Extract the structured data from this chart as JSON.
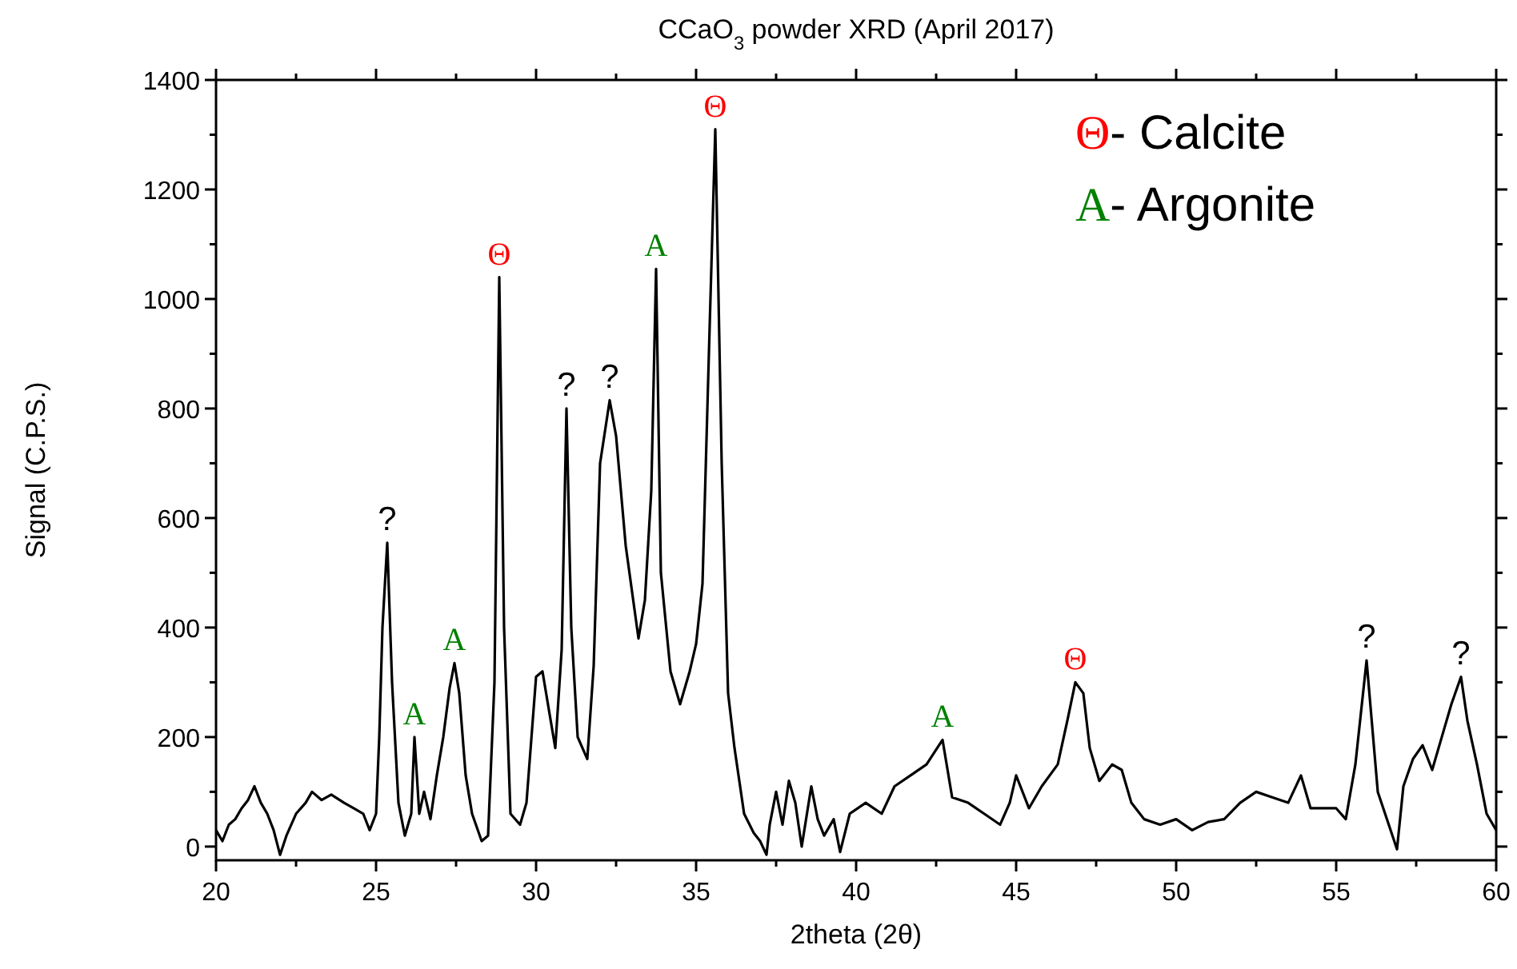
{
  "chart_data": {
    "type": "line",
    "title": "CCaO$_{3}$ powder XRD (April 2017)",
    "xlabel": "2theta (2θ)",
    "ylabel": "Signal (C.P.S.)",
    "xlim": [
      20,
      60
    ],
    "ylim": [
      -25,
      1400
    ],
    "xticks": [
      20,
      {
        "value": 22.5,
        "label": null
      },
      25,
      {
        "value": 27.5,
        "label": null
      },
      30,
      {
        "value": 32.5,
        "label": null
      },
      35,
      {
        "value": 37.5,
        "label": null
      },
      40,
      {
        "value": 42.5,
        "label": null
      },
      45,
      {
        "value": 47.5,
        "label": null
      },
      50,
      {
        "value": 52.5,
        "label": null
      },
      55,
      {
        "value": 57.5,
        "label": null
      },
      60
    ],
    "yticks": [
      0,
      {
        "value": 100,
        "label": null
      },
      200,
      {
        "value": 300,
        "label": null
      },
      400,
      {
        "value": 500,
        "label": null
      },
      600,
      {
        "value": 700,
        "label": null
      },
      800,
      {
        "value": 900,
        "label": null
      },
      1000,
      {
        "value": 1100,
        "label": null
      },
      1200,
      {
        "value": 1300,
        "label": null
      },
      1400
    ],
    "grid": false,
    "marker": "none",
    "line_style": "solid",
    "series": [
      {
        "color": "#000000",
        "x": [
          20.0,
          20.2,
          20.4,
          20.6,
          20.8,
          21.0,
          21.2,
          21.4,
          21.6,
          21.8,
          22.0,
          22.2,
          22.5,
          22.8,
          23.0,
          23.3,
          23.6,
          24.0,
          24.3,
          24.6,
          24.8,
          25.0,
          25.1,
          25.2,
          25.35,
          25.5,
          25.7,
          25.9,
          26.1,
          26.2,
          26.35,
          26.5,
          26.7,
          26.9,
          27.1,
          27.3,
          27.45,
          27.6,
          27.8,
          28.0,
          28.3,
          28.5,
          28.7,
          28.85,
          29.0,
          29.2,
          29.5,
          29.7,
          30.0,
          30.2,
          30.4,
          30.6,
          30.8,
          30.95,
          31.1,
          31.3,
          31.6,
          31.8,
          32.0,
          32.3,
          32.5,
          32.8,
          33.2,
          33.4,
          33.6,
          33.75,
          33.9,
          34.2,
          34.5,
          34.8,
          35.0,
          35.2,
          35.4,
          35.6,
          35.8,
          36.0,
          36.2,
          36.5,
          36.8,
          37.0,
          37.2,
          37.3,
          37.5,
          37.7,
          37.9,
          38.1,
          38.3,
          38.6,
          38.8,
          39.0,
          39.3,
          39.5,
          39.8,
          40.3,
          40.8,
          41.2,
          41.7,
          42.2,
          42.7,
          43.0,
          43.5,
          44.0,
          44.5,
          44.8,
          45.0,
          45.4,
          45.8,
          46.3,
          46.6,
          46.85,
          47.1,
          47.3,
          47.6,
          48.0,
          48.3,
          48.6,
          49.0,
          49.5,
          50.0,
          50.5,
          51.0,
          51.5,
          52.0,
          52.5,
          53.0,
          53.5,
          53.9,
          54.2,
          54.6,
          55.0,
          55.3,
          55.6,
          55.95,
          56.3,
          56.7,
          56.9,
          57.1,
          57.4,
          57.7,
          58.0,
          58.3,
          58.6,
          58.9,
          59.1,
          59.4,
          59.7,
          60.0
        ],
        "values": [
          30,
          10,
          40,
          50,
          70,
          85,
          110,
          80,
          60,
          30,
          -15,
          20,
          60,
          80,
          100,
          85,
          95,
          80,
          70,
          60,
          30,
          60,
          200,
          400,
          555,
          300,
          80,
          20,
          60,
          200,
          60,
          100,
          50,
          130,
          200,
          290,
          335,
          280,
          130,
          60,
          10,
          20,
          300,
          1040,
          400,
          60,
          40,
          80,
          310,
          320,
          250,
          180,
          360,
          800,
          400,
          200,
          160,
          330,
          700,
          815,
          750,
          550,
          380,
          450,
          650,
          1055,
          500,
          320,
          260,
          320,
          370,
          480,
          900,
          1310,
          700,
          280,
          180,
          60,
          25,
          10,
          -15,
          40,
          100,
          40,
          120,
          80,
          0,
          110,
          50,
          20,
          50,
          -10,
          60,
          80,
          60,
          110,
          130,
          150,
          195,
          90,
          80,
          60,
          40,
          80,
          130,
          70,
          110,
          150,
          230,
          300,
          280,
          180,
          120,
          150,
          140,
          80,
          50,
          40,
          50,
          30,
          45,
          50,
          80,
          100,
          90,
          80,
          130,
          70,
          70,
          70,
          50,
          150,
          340,
          100,
          30,
          -5,
          110,
          160,
          185,
          140,
          200,
          260,
          310,
          230,
          150,
          60,
          30
        ]
      }
    ],
    "colors": [
      null,
      "#008000",
      "#008000",
      "#ff0000",
      null,
      null,
      "#008000",
      "#ff0000",
      "#008000",
      "#ff0000",
      null,
      null,
      "#ff0000",
      "#008000"
    ],
    "annotations": [
      {
        "text": "?",
        "x": 25.35,
        "y": 555
      },
      {
        "text": "A",
        "x": 26.2,
        "y": 200
      },
      {
        "text": "A",
        "x": 27.45,
        "y": 335
      },
      {
        "text": "Θ",
        "x": 28.85,
        "y": 1040
      },
      {
        "text": "?",
        "x": 30.95,
        "y": 800
      },
      {
        "text": "?",
        "x": 32.3,
        "y": 815
      },
      {
        "text": "A",
        "x": 33.75,
        "y": 1055
      },
      {
        "text": "Θ",
        "x": 35.6,
        "y": 1310
      },
      {
        "text": "A",
        "x": 42.7,
        "y": 195
      },
      {
        "text": "Θ",
        "x": 46.85,
        "y": 300
      },
      {
        "text": "?",
        "x": 55.95,
        "y": 340
      },
      {
        "text": "?",
        "x": 58.9,
        "y": 310
      },
      "Θ- Calcite",
      "A- Argonite"
    ]
  }
}
